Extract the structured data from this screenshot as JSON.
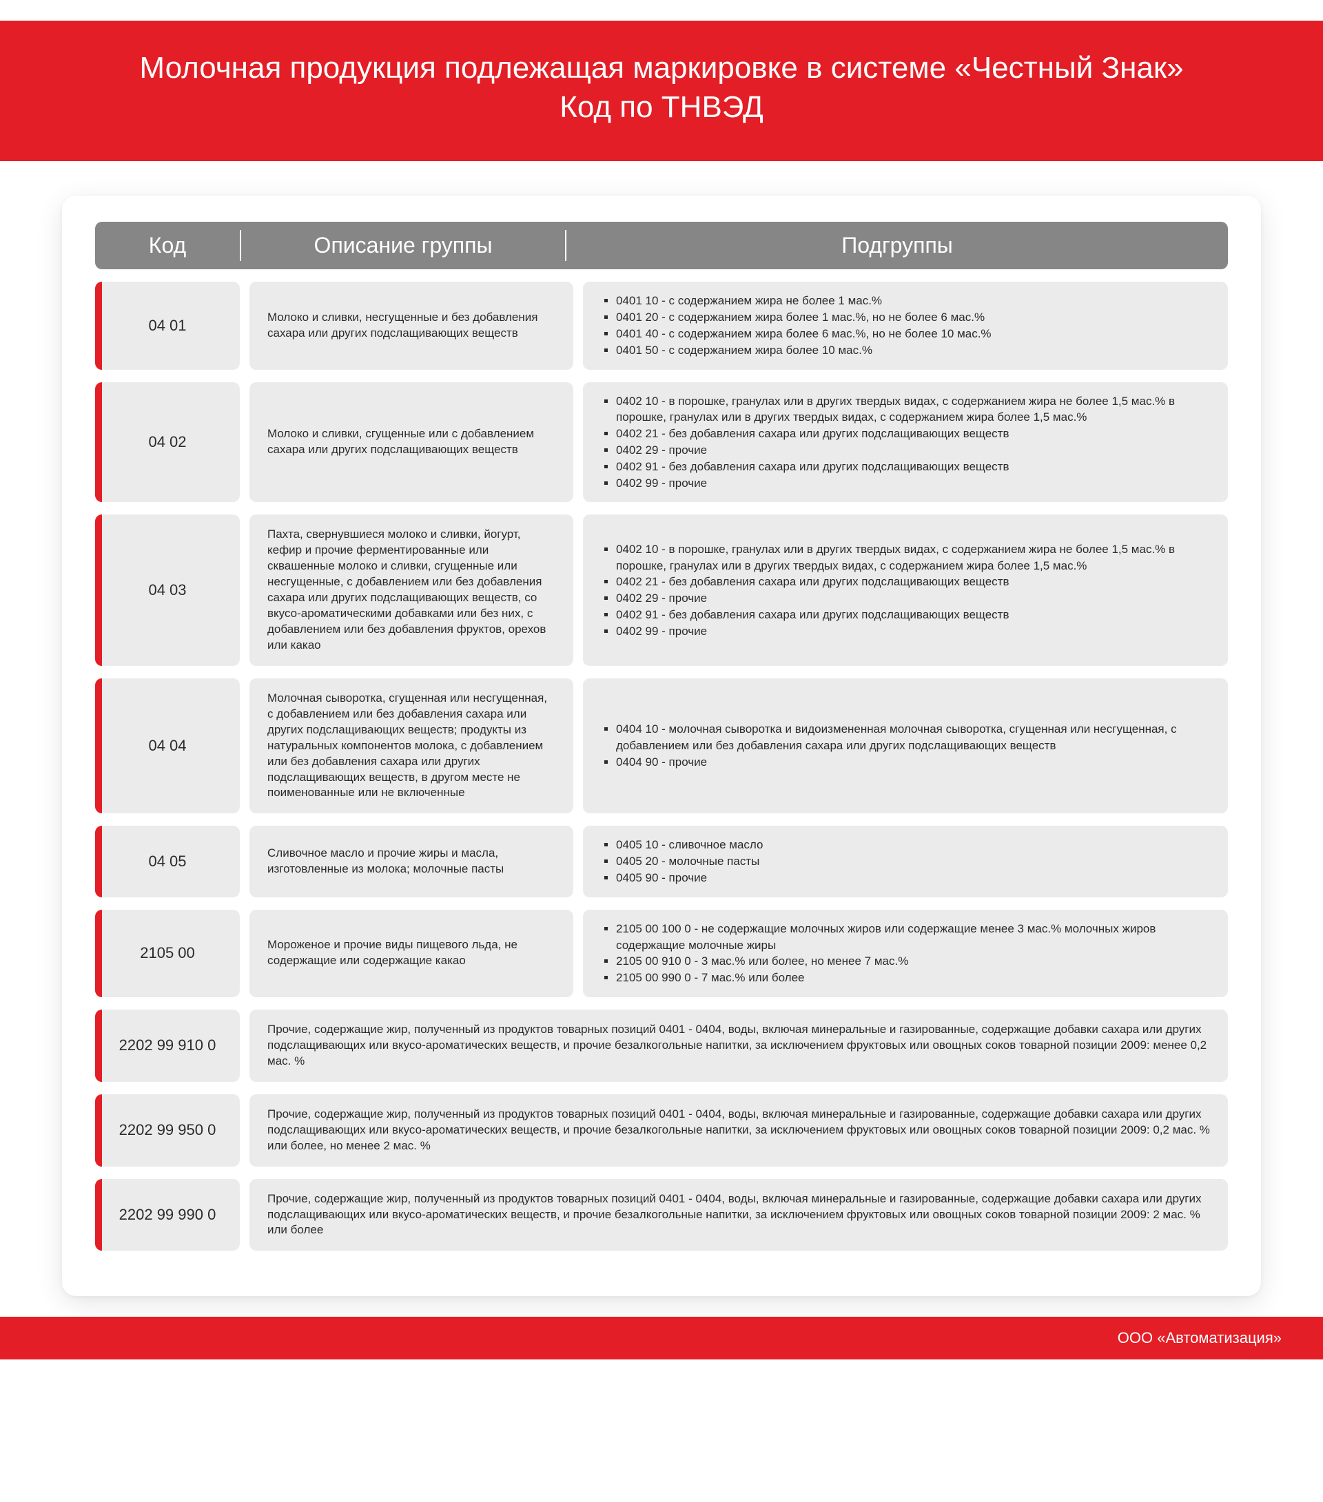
{
  "colors": {
    "accent": "#e41e26",
    "header_gray": "#868686",
    "cell_bg": "#ebebeb",
    "text": "#2b2b2b",
    "white": "#ffffff"
  },
  "title_line1": "Молочная продукция подлежащая маркировке в системе «Честный Знак»",
  "title_line2": "Код по ТНВЭД",
  "columns": {
    "code": "Код",
    "description": "Описание группы",
    "subgroups": "Подгруппы"
  },
  "rows": [
    {
      "code": "04 01",
      "description": "Молоко и сливки, несгущенные и без добавления сахара или других подслащивающих веществ",
      "subgroups": [
        "0401 10 - с содержанием жира не более 1 мас.%",
        "0401 20 - с содержанием жира более 1 мас.%, но не более 6 мас.%",
        "0401 40 - с содержанием жира более 6 мас.%, но не более 10 мас.%",
        "0401 50 - с содержанием жира более 10 мас.%"
      ]
    },
    {
      "code": "04 02",
      "description": "Молоко и сливки, сгущенные или с добавлением сахара или других подслащивающих веществ",
      "subgroups": [
        "0402 10 - в порошке, гранулах или в других твердых видах, с содержанием жира не более 1,5 мас.% в порошке, гранулах или в других твердых видах, с содержанием жира более 1,5 мас.%",
        "0402 21 - без добавления сахара или других подслащивающих веществ",
        "0402 29 - прочие",
        "0402 91 - без добавления сахара или других подслащивающих веществ",
        "0402 99 - прочие"
      ]
    },
    {
      "code": "04 03",
      "description": "Пахта, свернувшиеся молоко и сливки, йогурт, кефир и прочие ферментированные или сквашенные молоко и сливки, сгущенные или несгущенные, с добавлением или без добавления сахара или других подслащивающих веществ, со вкусо-ароматическими добавками или без них, с добавлением или без добавления фруктов, орехов или какао",
      "subgroups": [
        "0402 10 - в порошке, гранулах или в других твердых видах, с содержанием жира не более 1,5 мас.% в порошке, гранулах или в других твердых видах, с содержанием жира более 1,5 мас.%",
        "0402 21 - без добавления сахара или других подслащивающих веществ",
        "0402 29 - прочие",
        "0402 91 - без добавления сахара или других подслащивающих веществ",
        "0402 99 - прочие"
      ]
    },
    {
      "code": "04 04",
      "description": "Молочная сыворотка, сгущенная или несгущенная, с добавлением или без добавления сахара или других подслащивающих веществ; продукты из натуральных компонентов молока, с добавлением или без добавления сахара или других подслащивающих веществ, в другом месте не поименованные или не включенные",
      "subgroups": [
        "0404 10 - молочная сыворотка и видоизмененная молочная сыворотка, сгущенная или несгущенная, с добавлением или без добавления сахара или других подслащивающих веществ",
        "0404 90 - прочие"
      ]
    },
    {
      "code": "04 05",
      "description": "Сливочное масло и прочие жиры и масла, изготовленные из молока; молочные пасты",
      "subgroups": [
        "0405 10 - сливочное масло",
        "0405 20 - молочные пасты",
        "0405 90 - прочие"
      ]
    },
    {
      "code": "2105 00",
      "description": "Мороженое и прочие виды пищевого льда, не содержащие или содержащие какао",
      "subgroups": [
        "2105 00 100 0 - не содержащие молочных жиров или содержащие менее 3 мас.% молочных жиров содержащие молочные жиры",
        "2105 00 910 0 - 3 мас.% или более, но менее 7 мас.%",
        "2105 00 990 0 - 7 мас.% или более"
      ]
    },
    {
      "code": "2202 99 910 0",
      "wide": true,
      "description": "Прочие, содержащие жир, полученный из продуктов товарных позиций 0401 - 0404, воды, включая минеральные и газированные, содержащие добавки сахара или других подслащивающих или вкусо-ароматических веществ, и прочие безалкогольные напитки, за исключением фруктовых или овощных соков товарной позиции 2009: менее 0,2 мас. %"
    },
    {
      "code": "2202 99 950 0",
      "wide": true,
      "description": "Прочие, содержащие жир, полученный из продуктов товарных позиций 0401 - 0404, воды, включая минеральные и газированные, содержащие добавки сахара или других подслащивающих или вкусо-ароматических веществ, и прочие безалкогольные напитки, за исключением фруктовых или овощных соков товарной позиции 2009: 0,2 мас. % или более, но менее 2 мас. %"
    },
    {
      "code": "2202 99 990 0",
      "wide": true,
      "description": "Прочие, содержащие жир, полученный из продуктов товарных позиций 0401 - 0404, воды, включая минеральные и газированные, содержащие добавки сахара или других подслащивающих или вкусо-ароматических веществ, и прочие безалкогольные напитки, за исключением фруктовых или овощных соков товарной позиции 2009: 2 мас. % или более"
    }
  ],
  "footer": "ООО «Автоматизация»"
}
